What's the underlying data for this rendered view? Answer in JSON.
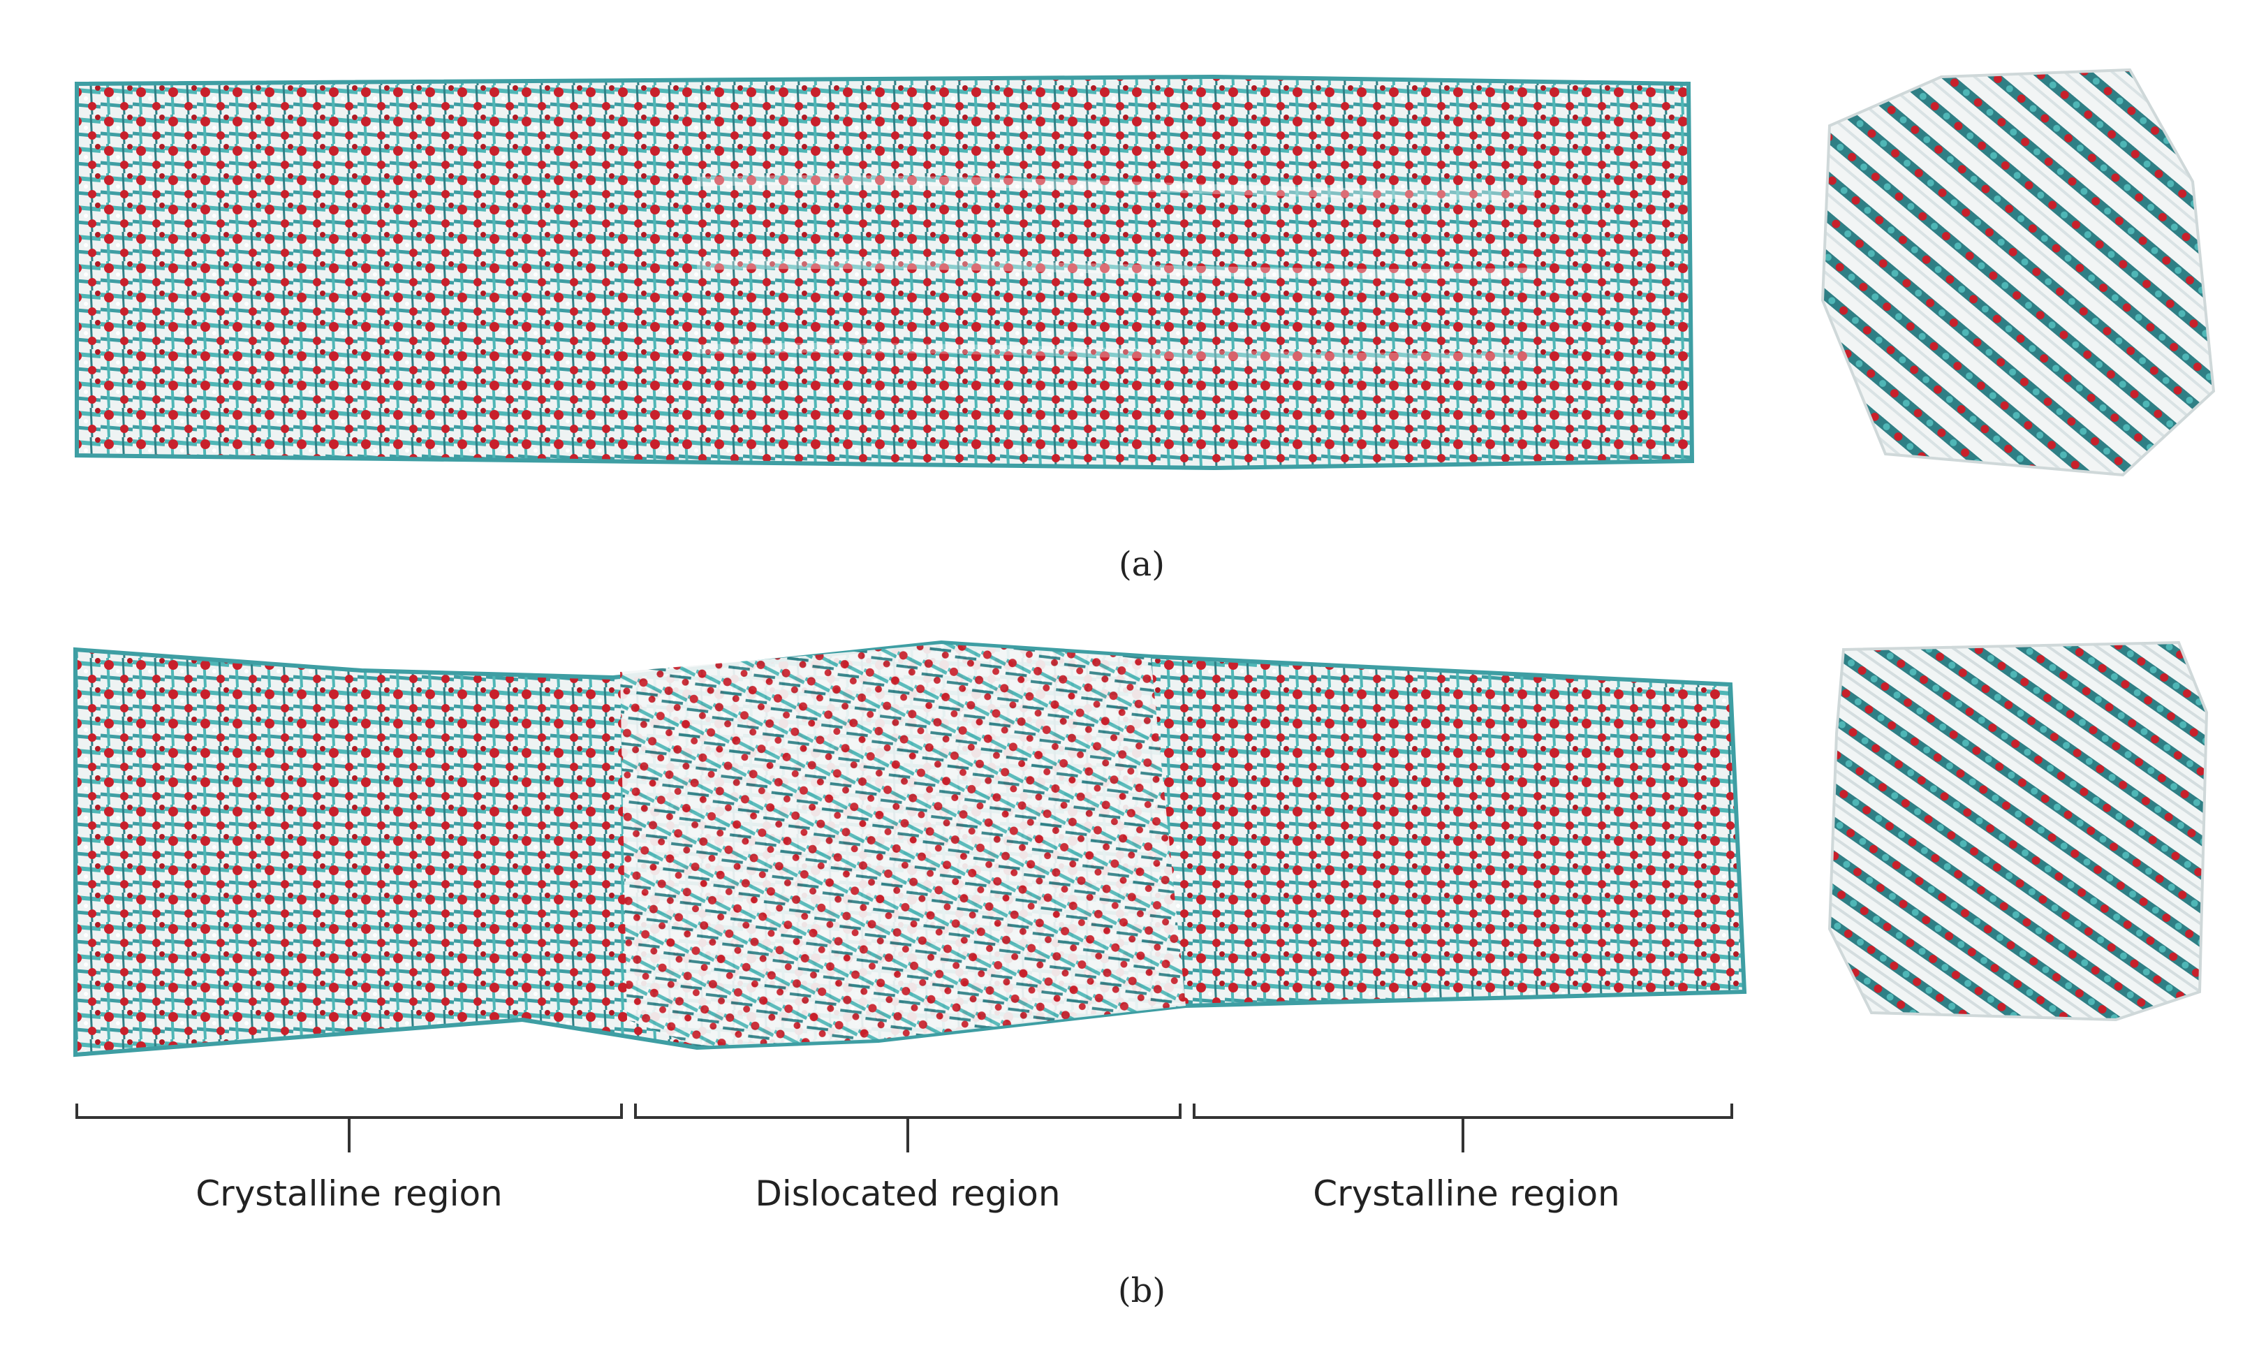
{
  "figure": {
    "panel_a": {
      "caption": "(a)"
    },
    "panel_b": {
      "caption": "(b)",
      "regions": [
        {
          "label": "Crystalline region"
        },
        {
          "label": "Dislocated region"
        },
        {
          "label": "Crystalline region"
        }
      ]
    }
  },
  "colors": {
    "carbon": "#4fb6b6",
    "carbon_dark": "#2f7f85",
    "oxygen": "#c8202b",
    "hydrogen": "#dfe8ea",
    "bracket": "#333333",
    "background": "#ffffff"
  }
}
